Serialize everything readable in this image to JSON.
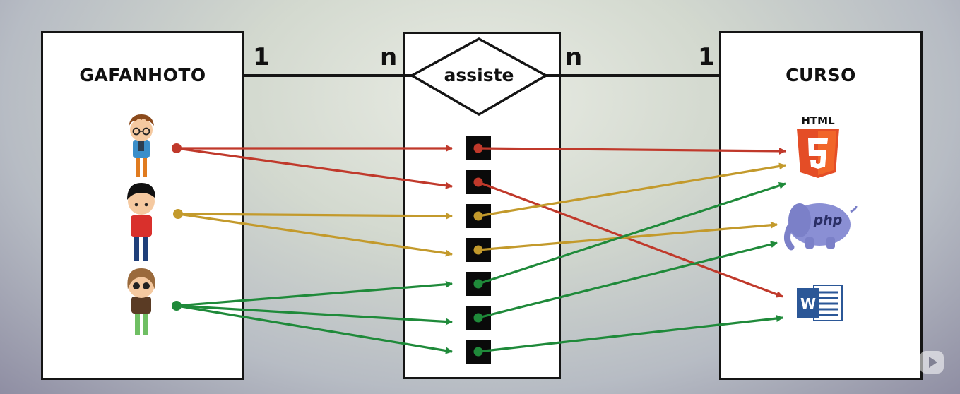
{
  "entities": {
    "left": {
      "title": "GAFANHOTO"
    },
    "right": {
      "title": "CURSO"
    }
  },
  "relationship": {
    "label": "assiste"
  },
  "cardinality": {
    "left_one": "1",
    "left_many": "n",
    "right_many": "n",
    "right_one": "1"
  },
  "people": [
    {
      "name": "person-glasses",
      "color": "#c0392b"
    },
    {
      "name": "person-black-hair",
      "color": "#c39a2c"
    },
    {
      "name": "person-brown-hair",
      "color": "#1f8a3a"
    }
  ],
  "courses": [
    {
      "icon": "html5-icon",
      "text": "HTML"
    },
    {
      "icon": "php-elephant-icon",
      "text": "php"
    },
    {
      "icon": "word-icon",
      "text": "W"
    }
  ],
  "links": [
    {
      "person": 0,
      "course": 0
    },
    {
      "person": 0,
      "course": 2
    },
    {
      "person": 1,
      "course": 0
    },
    {
      "person": 1,
      "course": 1
    },
    {
      "person": 2,
      "course": 0
    },
    {
      "person": 2,
      "course": 1
    },
    {
      "person": 2,
      "course": 2
    }
  ],
  "colors": {
    "red": "#c0392b",
    "gold": "#c39a2c",
    "green": "#1f8a3a",
    "html": "#e44d26",
    "php": "#7b80c8",
    "word": "#2b5797"
  }
}
